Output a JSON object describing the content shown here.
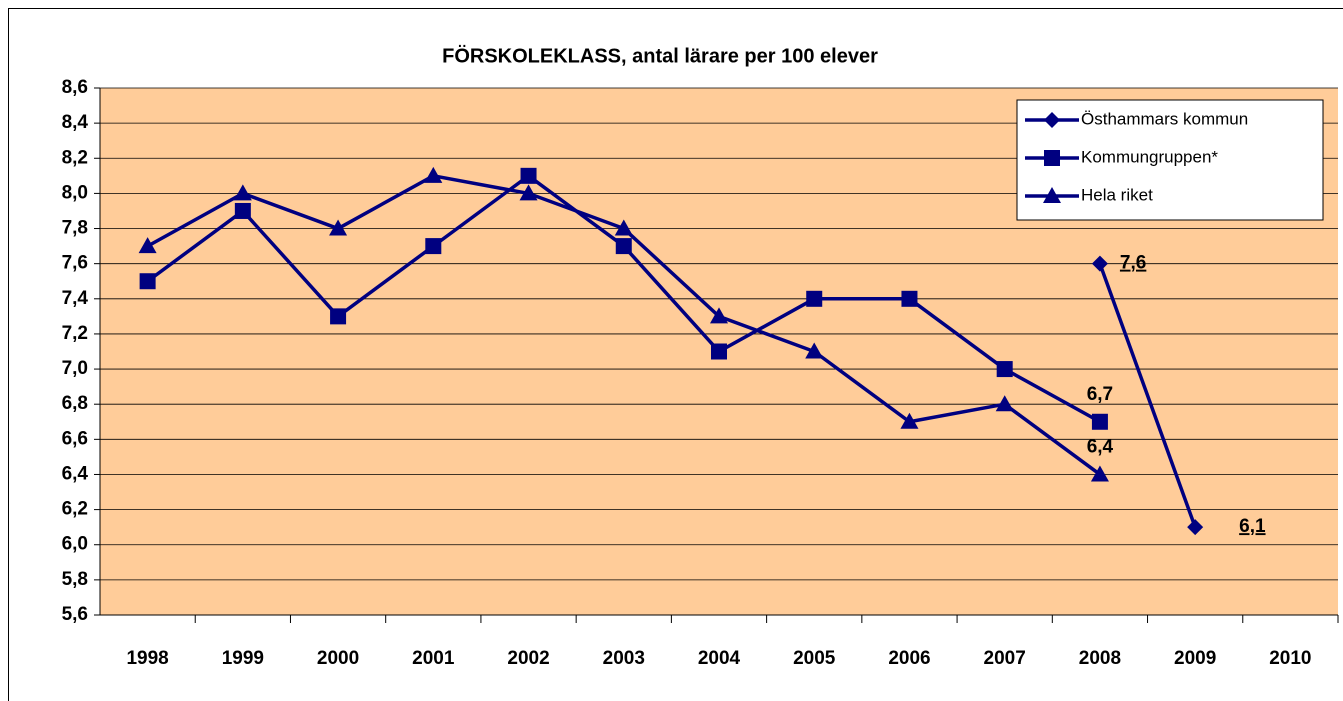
{
  "chart_data": {
    "type": "line",
    "title": "FÖRSKOLEKLASS, antal lärare per 100 elever",
    "categories": [
      "1998",
      "1999",
      "2000",
      "2001",
      "2002",
      "2003",
      "2004",
      "2005",
      "2006",
      "2007",
      "2008",
      "2009",
      "2010"
    ],
    "series": [
      {
        "name": "Östhammars kommun",
        "color": "#000080",
        "marker": "diamond",
        "values": [
          null,
          null,
          null,
          null,
          null,
          null,
          null,
          null,
          null,
          null,
          7.6,
          6.1,
          null
        ],
        "value_labels": [
          null,
          null,
          null,
          null,
          null,
          null,
          null,
          null,
          null,
          null,
          "7,6",
          "6,1",
          null
        ]
      },
      {
        "name": "Kommungruppen*",
        "color": "#000080",
        "marker": "square",
        "values": [
          7.5,
          7.9,
          7.3,
          7.7,
          8.1,
          7.7,
          7.1,
          7.4,
          7.4,
          7.0,
          6.7,
          null,
          null
        ],
        "value_labels": [
          null,
          null,
          null,
          null,
          null,
          null,
          null,
          null,
          null,
          null,
          "6,7",
          null,
          null
        ]
      },
      {
        "name": "Hela riket",
        "color": "#000080",
        "marker": "triangle",
        "values": [
          7.7,
          8.0,
          7.8,
          8.1,
          8.0,
          7.8,
          7.3,
          7.1,
          6.7,
          6.8,
          6.4,
          null,
          null
        ],
        "value_labels": [
          null,
          null,
          null,
          null,
          null,
          null,
          null,
          null,
          null,
          null,
          "6,4",
          null,
          null
        ]
      }
    ],
    "ylim": [
      5.6,
      8.6
    ],
    "yticks": [
      {
        "value": 5.6,
        "label": "5,6"
      },
      {
        "value": 5.8,
        "label": "5,8"
      },
      {
        "value": 6.0,
        "label": "6,0"
      },
      {
        "value": 6.2,
        "label": "6,2"
      },
      {
        "value": 6.4,
        "label": "6,4"
      },
      {
        "value": 6.6,
        "label": "6,6"
      },
      {
        "value": 6.8,
        "label": "6,8"
      },
      {
        "value": 7.0,
        "label": "7,0"
      },
      {
        "value": 7.2,
        "label": "7,2"
      },
      {
        "value": 7.4,
        "label": "7,4"
      },
      {
        "value": 7.6,
        "label": "7,6"
      },
      {
        "value": 7.8,
        "label": "7,8"
      },
      {
        "value": 8.0,
        "label": "8,0"
      },
      {
        "value": 8.2,
        "label": "8,2"
      },
      {
        "value": 8.4,
        "label": "8,4"
      },
      {
        "value": 8.6,
        "label": "8,6"
      }
    ],
    "grid": true,
    "background": "#ffcc99",
    "legend": "top-right"
  }
}
